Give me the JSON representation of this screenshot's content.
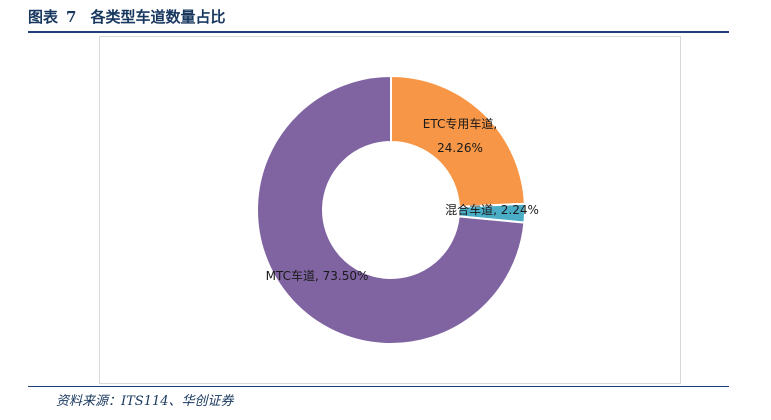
{
  "figure": {
    "label": "图表",
    "number": "7",
    "title": "各类型车道数量占比"
  },
  "source": "资料来源：ITS114、华创证券",
  "chart_data": {
    "type": "pie",
    "style": "donut",
    "title": "",
    "categories": [
      "ETC专用车道",
      "混合车道",
      "MTC车道"
    ],
    "values": [
      24.26,
      2.24,
      73.5
    ],
    "unit": "%",
    "colors": [
      "#f79646",
      "#4bacc6",
      "#8064a2"
    ],
    "data_labels": [
      [
        "ETC专用车道,",
        "24.26%"
      ],
      [
        "混合车道, 2.24%"
      ],
      [
        "MTC车道, 73.50%"
      ]
    ],
    "legend": "none"
  }
}
